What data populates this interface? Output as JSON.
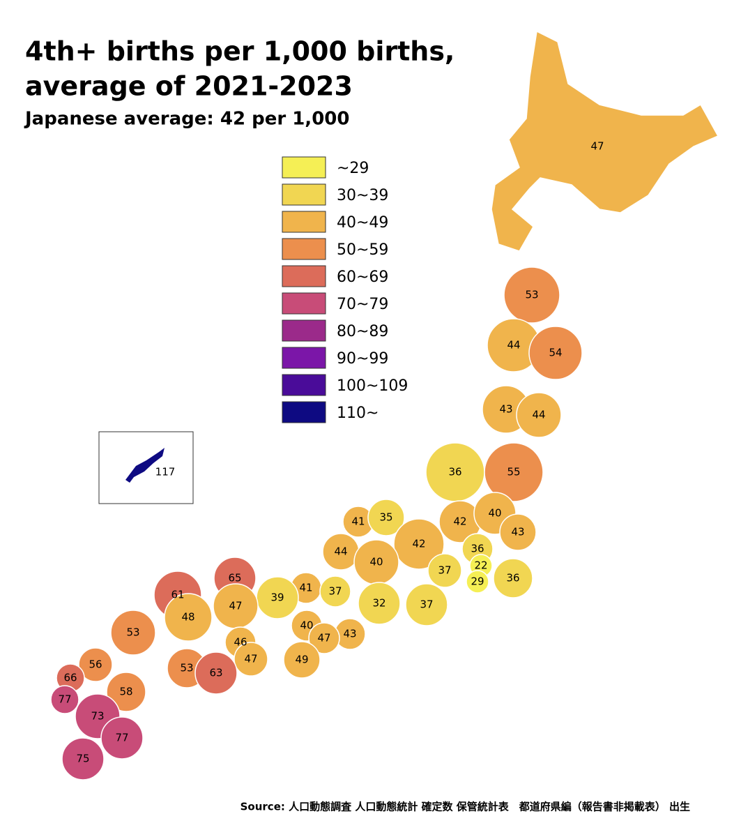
{
  "title_lines": [
    "4th+ births per 1,000 births,",
    "average of 2021-2023"
  ],
  "subtitle": "Japanese average: 42 per 1,000",
  "legend": [
    {
      "label": "~29",
      "max": 29,
      "color": "#f5ef55"
    },
    {
      "label": "30~39",
      "min": 30,
      "max": 39,
      "color": "#f1d652"
    },
    {
      "label": "40~49",
      "min": 40,
      "max": 49,
      "color": "#f0b44c"
    },
    {
      "label": "50~59",
      "min": 50,
      "max": 59,
      "color": "#ec8f4d"
    },
    {
      "label": "60~69",
      "min": 60,
      "max": 69,
      "color": "#dc6c5a"
    },
    {
      "label": "70~79",
      "min": 70,
      "max": 79,
      "color": "#c84c78"
    },
    {
      "label": "80~89",
      "min": 80,
      "max": 89,
      "color": "#9b2a8a"
    },
    {
      "label": "90~99",
      "min": 90,
      "max": 99,
      "color": "#7b16a8"
    },
    {
      "label": "100~109",
      "min": 100,
      "max": 109,
      "color": "#4a0c99"
    },
    {
      "label": "110~",
      "min": 110,
      "color": "#0e0a82"
    }
  ],
  "regions": [
    {
      "value": 47
    },
    {
      "value": 53
    },
    {
      "value": 44
    },
    {
      "value": 54
    },
    {
      "value": 43
    },
    {
      "value": 44
    },
    {
      "value": 36
    },
    {
      "value": 55
    },
    {
      "value": 41
    },
    {
      "value": 35
    },
    {
      "value": 42
    },
    {
      "value": 40
    },
    {
      "value": 43
    },
    {
      "value": 36
    },
    {
      "value": 42
    },
    {
      "value": 44
    },
    {
      "value": 22
    },
    {
      "value": 40
    },
    {
      "value": 37
    },
    {
      "value": 29
    },
    {
      "value": 36
    },
    {
      "value": 65
    },
    {
      "value": 61
    },
    {
      "value": 41
    },
    {
      "value": 37
    },
    {
      "value": 39
    },
    {
      "value": 47
    },
    {
      "value": 32
    },
    {
      "value": 37
    },
    {
      "value": 48
    },
    {
      "value": 53
    },
    {
      "value": 40
    },
    {
      "value": 43
    },
    {
      "value": 47
    },
    {
      "value": 46
    },
    {
      "value": 49
    },
    {
      "value": 47
    },
    {
      "value": 56
    },
    {
      "value": 53
    },
    {
      "value": 63
    },
    {
      "value": 66
    },
    {
      "value": 58
    },
    {
      "value": 77
    },
    {
      "value": 73
    },
    {
      "value": 77
    },
    {
      "value": 75
    },
    {
      "value": 117
    }
  ],
  "source": "Source: 人口動態調査 人口動態統計 確定数 保管統計表　都道府県編（報告書非掲載表） 出生"
}
